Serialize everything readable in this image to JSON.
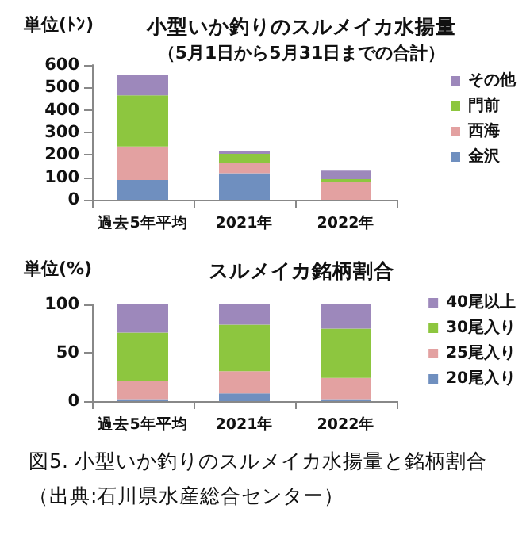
{
  "chart_data": [
    {
      "type": "bar",
      "stacked": true,
      "title": "小型いか釣りのスルメイカ水揚量",
      "subtitle": "（5月1日から5月31日までの合計）",
      "ylabel": "単位(ﾄﾝ)",
      "categories": [
        "過去5年平均",
        "2021年",
        "2022年"
      ],
      "series": [
        {
          "name": "金沢",
          "color": "#6f8fbf",
          "values": [
            88,
            118,
            0
          ]
        },
        {
          "name": "西海",
          "color": "#e3a1a1",
          "values": [
            149,
            47,
            78
          ]
        },
        {
          "name": "門前",
          "color": "#8dc63f",
          "values": [
            228,
            40,
            14
          ]
        },
        {
          "name": "その他",
          "color": "#9d88bb",
          "values": [
            90,
            10,
            38
          ]
        }
      ],
      "ylim": [
        0,
        600
      ],
      "yticks": [
        0,
        100,
        200,
        300,
        400,
        500,
        600
      ],
      "grid": false,
      "legend": "right"
    },
    {
      "type": "bar",
      "stacked": true,
      "title": "スルメイカ銘柄割合",
      "ylabel": "単位(%)",
      "categories": [
        "過去5年平均",
        "2021年",
        "2022年"
      ],
      "series": [
        {
          "name": "20尾入り",
          "color": "#6f8fbf",
          "values": [
            2,
            8,
            2
          ]
        },
        {
          "name": "25尾入り",
          "color": "#e3a1a1",
          "values": [
            19,
            23,
            22
          ]
        },
        {
          "name": "30尾入り",
          "color": "#8dc63f",
          "values": [
            50,
            48,
            51
          ]
        },
        {
          "name": "40尾以上",
          "color": "#9d88bb",
          "values": [
            29,
            21,
            25
          ]
        }
      ],
      "ylim": [
        0,
        100
      ],
      "yticks": [
        0,
        50,
        100
      ],
      "grid": false,
      "legend": "right",
      "annotations": [
        "図5. 小型いか釣りのスルメイカ水揚量と銘柄割合",
        "（出典:石川県水産総合センター）"
      ]
    }
  ]
}
